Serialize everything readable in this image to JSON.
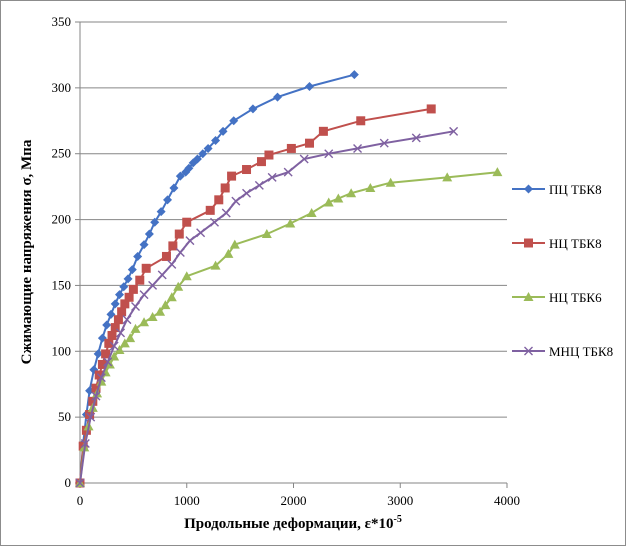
{
  "chart_data": {
    "type": "scatter",
    "title": "",
    "xlabel": "Продольные деформации, ε*10",
    "xlabel_sup": "-5",
    "ylabel": "Сжимающие напряжения σ, Мпа",
    "xlim": [
      0,
      4000
    ],
    "ylim": [
      0,
      350
    ],
    "xticks": [
      0,
      1000,
      2000,
      3000,
      4000
    ],
    "yticks": [
      0,
      50,
      100,
      150,
      200,
      250,
      300,
      350
    ],
    "grid": "horizontal",
    "legend_position": "right",
    "series": [
      {
        "name": "ПЦ ТБК8",
        "color": "#4472c4",
        "marker": "diamond",
        "x": [
          0,
          30,
          60,
          90,
          130,
          170,
          210,
          250,
          290,
          330,
          370,
          410,
          450,
          490,
          540,
          600,
          650,
          700,
          760,
          820,
          880,
          940,
          990,
          1020,
          1060,
          1100,
          1150,
          1200,
          1270,
          1340,
          1440,
          1620,
          1850,
          2150,
          2570
        ],
        "y": [
          0,
          30,
          52,
          70,
          86,
          98,
          110,
          120,
          128,
          136,
          143,
          149,
          155,
          162,
          172,
          181,
          189,
          198,
          206,
          215,
          224,
          233,
          236,
          239,
          243,
          246,
          250,
          254,
          260,
          267,
          275,
          284,
          293,
          301,
          310
        ]
      },
      {
        "name": "НЦ ТБК8",
        "color": "#c0504d",
        "marker": "square",
        "x": [
          0,
          30,
          60,
          90,
          120,
          150,
          180,
          210,
          240,
          270,
          300,
          330,
          360,
          390,
          420,
          460,
          500,
          560,
          620,
          810,
          870,
          930,
          1000,
          1220,
          1300,
          1360,
          1420,
          1560,
          1700,
          1770,
          1980,
          2150,
          2280,
          2630,
          3290
        ],
        "y": [
          0,
          28,
          40,
          52,
          62,
          72,
          82,
          90,
          98,
          106,
          112,
          118,
          124,
          130,
          136,
          141,
          147,
          154,
          163,
          172,
          180,
          189,
          198,
          207,
          215,
          224,
          233,
          238,
          244,
          249,
          254,
          258,
          267,
          275,
          284
        ]
      },
      {
        "name": "НЦ ТБК6",
        "color": "#9bbb59",
        "marker": "triangle",
        "x": [
          0,
          40,
          80,
          120,
          160,
          200,
          240,
          280,
          320,
          370,
          420,
          470,
          520,
          600,
          680,
          750,
          800,
          860,
          920,
          1000,
          1270,
          1390,
          1450,
          1750,
          1970,
          2170,
          2330,
          2420,
          2540,
          2720,
          2910,
          3440,
          3910
        ],
        "y": [
          0,
          27,
          43,
          57,
          68,
          77,
          84,
          90,
          96,
          101,
          106,
          110,
          117,
          122,
          126,
          130,
          135,
          141,
          149,
          157,
          165,
          174,
          181,
          189,
          197,
          205,
          213,
          216,
          220,
          224,
          228,
          232,
          236
        ]
      },
      {
        "name": "МНЦ ТБК8",
        "color": "#7f61a1",
        "marker": "x",
        "x": [
          0,
          50,
          100,
          150,
          200,
          260,
          320,
          380,
          440,
          520,
          600,
          680,
          770,
          860,
          940,
          1030,
          1130,
          1260,
          1370,
          1460,
          1560,
          1680,
          1800,
          1950,
          2100,
          2330,
          2600,
          2850,
          3150,
          3500
        ],
        "y": [
          0,
          30,
          50,
          66,
          80,
          92,
          104,
          114,
          124,
          134,
          143,
          150,
          158,
          166,
          175,
          184,
          190,
          198,
          205,
          214,
          220,
          226,
          232,
          236,
          246,
          250,
          254,
          258,
          262,
          267
        ]
      }
    ]
  }
}
